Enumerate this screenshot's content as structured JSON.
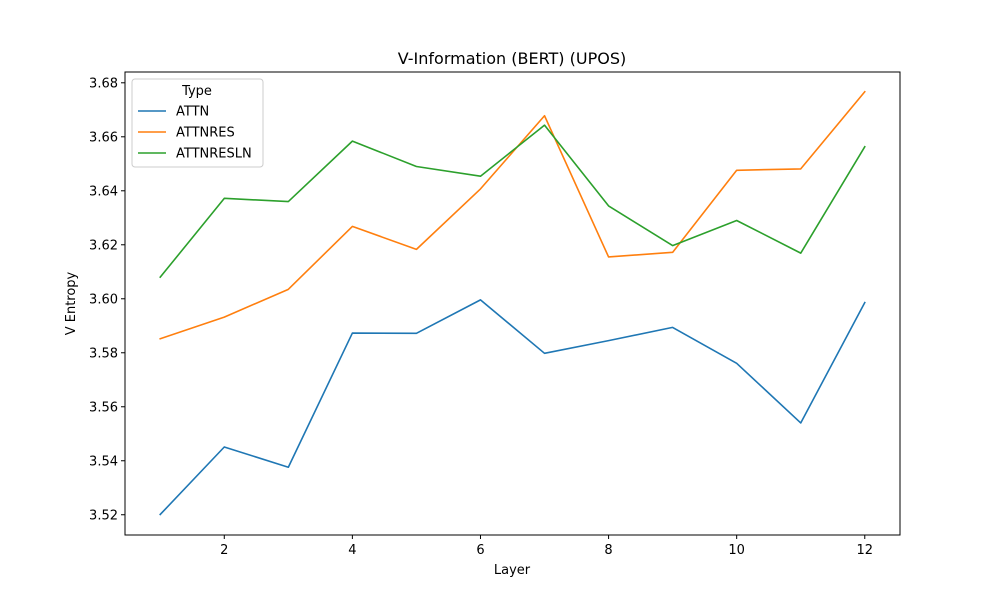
{
  "chart_data": {
    "type": "line",
    "title": "V-Information (BERT) (UPOS)",
    "xlabel": "Layer",
    "ylabel": "V Entropy",
    "x": [
      1,
      2,
      3,
      4,
      5,
      6,
      7,
      8,
      9,
      10,
      11,
      12
    ],
    "xlim": [
      0.45,
      12.55
    ],
    "ylim": [
      3.5125,
      3.684
    ],
    "xticks": [
      2,
      4,
      6,
      8,
      10,
      12
    ],
    "yticks": [
      3.52,
      3.54,
      3.56,
      3.58,
      3.6,
      3.62,
      3.64,
      3.66,
      3.68
    ],
    "xtick_labels": [
      "2",
      "4",
      "6",
      "8",
      "10",
      "12"
    ],
    "ytick_labels": [
      "3.52",
      "3.54",
      "3.56",
      "3.58",
      "3.60",
      "3.62",
      "3.64",
      "3.66",
      "3.68"
    ],
    "grid": false,
    "legend": {
      "title": "Type",
      "placement": "top-left"
    },
    "series": [
      {
        "name": "ATTN",
        "color": "#1f77b4",
        "values": [
          3.5201,
          3.5451,
          3.5376,
          3.5873,
          3.5872,
          3.5996,
          3.5798,
          3.5845,
          3.5894,
          3.5761,
          3.554,
          3.5986
        ]
      },
      {
        "name": "ATTNRES",
        "color": "#ff7f0e",
        "values": [
          3.5852,
          3.5932,
          3.6035,
          3.6268,
          3.6183,
          3.6407,
          3.6678,
          3.6155,
          3.6172,
          3.6476,
          3.6481,
          3.6767
        ]
      },
      {
        "name": "ATTNRESLN",
        "color": "#2ca02c",
        "values": [
          3.608,
          3.6372,
          3.636,
          3.6584,
          3.649,
          3.6454,
          3.6643,
          3.6344,
          3.6197,
          3.629,
          3.6169,
          3.6563
        ]
      }
    ]
  }
}
